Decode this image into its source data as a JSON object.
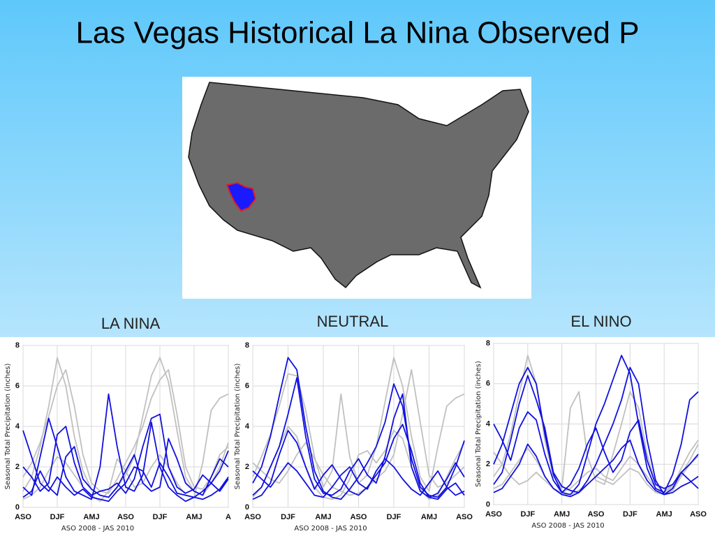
{
  "slide_title": "Las Vegas Historical La Nina Observed P",
  "chart_data": [
    {
      "type": "line",
      "title": "LA NINA",
      "x_label": "ASO 2008 - JAS 2010",
      "y_label": "Seasonal Total Precipitation (inches)",
      "categories": [
        "ASO",
        null,
        null,
        null,
        "DJF",
        null,
        null,
        null,
        "AMJ",
        null,
        null,
        null,
        "ASO",
        null,
        null,
        null,
        "DJF",
        null,
        null,
        null,
        "AMJ",
        null,
        null,
        null,
        "A"
      ],
      "ylim": [
        0,
        8
      ],
      "yticks": [
        0,
        2,
        4,
        6,
        8
      ],
      "grid": true,
      "series": [
        {
          "color": "#c0c0c0",
          "values": [
            0.8,
            1.5,
            3.0,
            5.0,
            7.4,
            6.0,
            3.5,
            1.8,
            0.9,
            0.6,
            0.5,
            1.0,
            1.6,
            2.5,
            4.5,
            6.5,
            7.4,
            6.2,
            3.8,
            1.5,
            0.8,
            0.6,
            1.2,
            2.0,
            3.2
          ]
        },
        {
          "color": "#c0c0c0",
          "values": [
            1.5,
            2.2,
            3.2,
            4.5,
            6.0,
            6.8,
            5.0,
            2.6,
            1.2,
            0.8,
            0.7,
            1.4,
            2.2,
            3.0,
            4.0,
            5.4,
            6.3,
            6.8,
            4.6,
            2.0,
            1.0,
            0.9,
            1.5,
            2.6,
            3.0
          ]
        },
        {
          "color": "#c0c0c0",
          "values": [
            0.4,
            0.6,
            1.0,
            1.8,
            2.5,
            2.2,
            1.6,
            1.0,
            0.6,
            0.3,
            0.8,
            2.4,
            1.8,
            1.0,
            1.2,
            2.0,
            2.6,
            2.0,
            1.2,
            0.6,
            0.5,
            2.2,
            4.8,
            5.4,
            5.6
          ]
        },
        {
          "color": "#1010e0",
          "values": [
            3.8,
            2.5,
            1.2,
            0.8,
            1.5,
            1.0,
            0.6,
            0.9,
            0.5,
            0.4,
            0.3,
            0.8,
            1.2,
            2.0,
            1.8,
            1.0,
            2.2,
            1.5,
            0.7,
            0.6,
            0.5,
            0.4,
            0.6,
            0.9,
            1.5
          ]
        },
        {
          "color": "#1010e0",
          "values": [
            1.0,
            0.6,
            2.5,
            4.4,
            3.0,
            1.5,
            0.8,
            0.6,
            0.4,
            2.0,
            5.6,
            3.0,
            1.0,
            0.8,
            1.6,
            4.2,
            2.0,
            1.0,
            0.6,
            0.3,
            0.5,
            0.8,
            1.2,
            1.8,
            2.8
          ]
        },
        {
          "color": "#1010e0",
          "values": [
            2.0,
            1.5,
            0.8,
            1.2,
            3.6,
            4.0,
            2.2,
            1.0,
            0.6,
            0.8,
            0.9,
            1.2,
            0.7,
            1.4,
            3.0,
            4.4,
            4.6,
            2.0,
            1.0,
            0.7,
            0.9,
            1.6,
            1.2,
            0.8,
            1.4
          ]
        },
        {
          "color": "#1010e0",
          "values": [
            0.5,
            0.8,
            1.8,
            1.0,
            0.6,
            2.5,
            3.0,
            1.4,
            0.9,
            0.6,
            0.5,
            1.0,
            1.8,
            2.6,
            1.2,
            0.8,
            1.0,
            3.4,
            2.4,
            1.2,
            0.8,
            0.6,
            1.5,
            2.4,
            2.0
          ]
        }
      ]
    },
    {
      "type": "line",
      "title": "NEUTRAL",
      "x_label": "ASO 2008 - JAS 2010",
      "y_label": "Seasonal Total Precipitation (inches)",
      "categories": [
        "ASO",
        null,
        null,
        null,
        "DJF",
        null,
        null,
        null,
        "AMJ",
        null,
        null,
        null,
        "ASO",
        null,
        null,
        null,
        "DJF",
        null,
        null,
        null,
        "AMJ",
        null,
        null,
        null,
        "ASO"
      ],
      "ylim": [
        0,
        8
      ],
      "yticks": [
        0,
        2,
        4,
        6,
        8
      ],
      "grid": true,
      "series": [
        {
          "color": "#c0c0c0",
          "values": [
            1.5,
            2.5,
            3.6,
            5.0,
            6.6,
            6.5,
            4.8,
            2.5,
            1.0,
            1.8,
            5.6,
            2.5,
            1.2,
            1.6,
            3.0,
            5.2,
            7.4,
            6.0,
            3.5,
            1.5,
            0.8,
            3.0,
            5.0,
            5.4,
            5.6
          ]
        },
        {
          "color": "#c0c0c0",
          "values": [
            0.5,
            1.0,
            2.0,
            3.0,
            4.0,
            3.5,
            2.0,
            1.0,
            0.5,
            0.4,
            0.6,
            1.4,
            2.6,
            2.8,
            2.2,
            2.8,
            3.8,
            3.4,
            2.0,
            0.9,
            0.4,
            0.6,
            1.5,
            2.4,
            3.2
          ]
        },
        {
          "color": "#c0c0c0",
          "values": [
            2.2,
            1.8,
            1.4,
            1.2,
            1.8,
            2.6,
            3.2,
            2.4,
            1.6,
            1.0,
            0.8,
            0.6,
            0.7,
            1.0,
            1.4,
            1.8,
            2.6,
            4.6,
            6.8,
            4.2,
            1.6,
            1.0,
            1.2,
            1.6,
            2.0
          ]
        },
        {
          "color": "#1010e0",
          "values": [
            1.2,
            2.0,
            3.5,
            5.5,
            7.4,
            6.8,
            4.0,
            1.8,
            0.8,
            0.5,
            0.4,
            0.9,
            1.5,
            2.2,
            3.0,
            4.2,
            6.1,
            5.0,
            2.4,
            1.0,
            0.6,
            0.5,
            1.0,
            2.0,
            3.3
          ]
        },
        {
          "color": "#1010e0",
          "values": [
            0.6,
            1.0,
            2.0,
            3.0,
            4.6,
            6.4,
            3.5,
            1.4,
            0.7,
            0.6,
            0.9,
            1.8,
            2.4,
            1.6,
            1.2,
            2.5,
            4.4,
            5.6,
            2.0,
            0.8,
            0.5,
            0.7,
            1.4,
            2.2,
            1.5
          ]
        },
        {
          "color": "#1010e0",
          "values": [
            1.8,
            1.4,
            1.0,
            1.6,
            2.2,
            1.8,
            1.2,
            0.6,
            0.5,
            1.0,
            1.6,
            2.0,
            1.2,
            0.9,
            1.8,
            2.4,
            2.0,
            1.4,
            0.9,
            0.6,
            1.2,
            1.8,
            1.0,
            0.6,
            0.8
          ]
        },
        {
          "color": "#1010e0",
          "values": [
            0.4,
            0.6,
            1.2,
            2.6,
            3.8,
            3.2,
            2.0,
            0.9,
            1.6,
            2.1,
            1.4,
            0.8,
            0.6,
            1.0,
            1.6,
            2.2,
            3.4,
            4.1,
            2.8,
            1.2,
            0.5,
            0.4,
            0.9,
            1.2,
            0.6
          ]
        }
      ]
    },
    {
      "type": "line",
      "title": "EL NINO",
      "x_label": "ASO 2008 - JAS 2010",
      "y_label": "Seasonal Total Precipitation (inches)",
      "categories": [
        "ASO",
        null,
        null,
        null,
        "DJF",
        null,
        null,
        null,
        "AMJ",
        null,
        null,
        null,
        "ASO",
        null,
        null,
        null,
        "DJF",
        null,
        null,
        null,
        "AMJ",
        null,
        null,
        null,
        "ASO"
      ],
      "ylim": [
        0,
        8
      ],
      "yticks": [
        0,
        2,
        4,
        6,
        8
      ],
      "grid": true,
      "series": [
        {
          "color": "#c0c0c0",
          "values": [
            1.4,
            2.0,
            3.5,
            5.5,
            7.4,
            6.0,
            3.2,
            1.4,
            0.8,
            4.8,
            5.6,
            2.4,
            1.2,
            1.0,
            2.5,
            4.0,
            5.6,
            4.8,
            2.5,
            1.0,
            0.6,
            0.9,
            1.8,
            2.6,
            3.2
          ]
        },
        {
          "color": "#c0c0c0",
          "values": [
            0.8,
            1.0,
            1.6,
            2.2,
            2.8,
            2.2,
            1.4,
            0.8,
            0.6,
            0.8,
            1.2,
            1.6,
            1.8,
            1.4,
            1.2,
            1.8,
            2.4,
            2.0,
            1.4,
            0.8,
            0.6,
            1.0,
            1.5,
            2.2,
            3.0
          ]
        },
        {
          "color": "#c0c0c0",
          "values": [
            2.6,
            2.0,
            1.4,
            1.0,
            1.2,
            1.6,
            1.2,
            0.8,
            0.5,
            0.5,
            0.7,
            1.0,
            1.4,
            1.2,
            1.0,
            1.4,
            1.8,
            1.6,
            1.0,
            0.6,
            0.5,
            0.7,
            1.4,
            2.0,
            2.4
          ]
        },
        {
          "color": "#1010e0",
          "values": [
            2.0,
            3.0,
            4.5,
            6.0,
            6.8,
            6.0,
            3.5,
            1.5,
            0.6,
            0.5,
            1.0,
            2.5,
            4.0,
            5.0,
            6.2,
            7.4,
            6.5,
            4.0,
            1.8,
            0.8,
            0.6,
            1.5,
            3.0,
            5.2,
            5.6
          ]
        },
        {
          "color": "#1010e0",
          "values": [
            1.0,
            1.6,
            3.2,
            5.0,
            6.4,
            5.2,
            3.8,
            1.6,
            0.9,
            0.7,
            0.6,
            1.2,
            2.0,
            3.0,
            4.0,
            5.2,
            6.8,
            6.0,
            3.2,
            1.2,
            0.5,
            0.8,
            1.6,
            1.2,
            0.8
          ]
        },
        {
          "color": "#1010e0",
          "values": [
            4.0,
            3.2,
            2.2,
            3.8,
            4.6,
            4.2,
            2.5,
            1.2,
            0.6,
            1.0,
            1.8,
            3.0,
            3.8,
            2.6,
            1.6,
            2.2,
            3.6,
            4.2,
            2.2,
            1.0,
            0.8,
            1.0,
            1.6,
            2.0,
            2.5
          ]
        },
        {
          "color": "#1010e0",
          "values": [
            0.6,
            0.8,
            1.4,
            2.0,
            3.0,
            2.4,
            1.4,
            0.8,
            0.5,
            0.4,
            0.6,
            1.0,
            1.4,
            1.8,
            2.2,
            2.8,
            3.2,
            2.0,
            1.2,
            0.7,
            0.5,
            0.6,
            0.9,
            1.1,
            1.4
          ]
        }
      ]
    }
  ]
}
